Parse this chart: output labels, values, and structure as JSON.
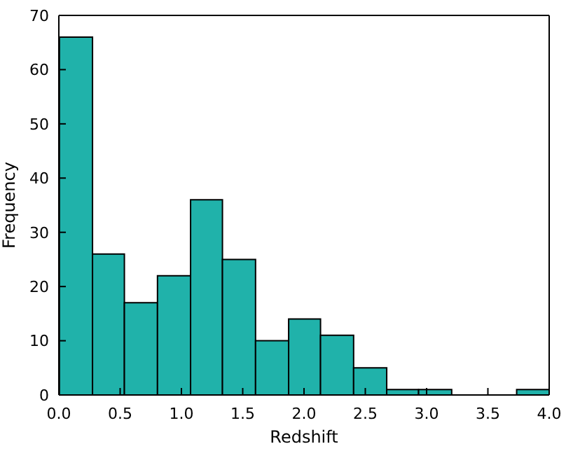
{
  "chart_data": {
    "type": "histogram",
    "xlabel": "Redshift",
    "ylabel": "Frequency",
    "color": "#20b2aa",
    "bins": [
      0,
      0.27,
      0.53,
      0.8,
      1.07,
      1.33,
      1.6,
      1.87,
      2.13,
      2.4,
      2.67,
      2.93,
      3.2,
      3.73,
      4
    ],
    "values": [
      66,
      26,
      17,
      22,
      36,
      25,
      10,
      14,
      11,
      5,
      1,
      1,
      0,
      1
    ],
    "xlim": [
      0,
      4
    ],
    "xticks": [
      {
        "value": 0,
        "label": "0.0"
      },
      0.5,
      {
        "value": 1,
        "label": "1.0"
      },
      1.5,
      {
        "value": 2,
        "label": "2.0"
      },
      2.5,
      {
        "value": 3,
        "label": "3.0"
      },
      3.5,
      {
        "value": 4,
        "label": "4.0"
      }
    ],
    "ylim": [
      0,
      70
    ],
    "yticks": [
      0,
      10,
      20,
      30,
      40,
      50,
      60,
      70
    ],
    "grid": false
  }
}
